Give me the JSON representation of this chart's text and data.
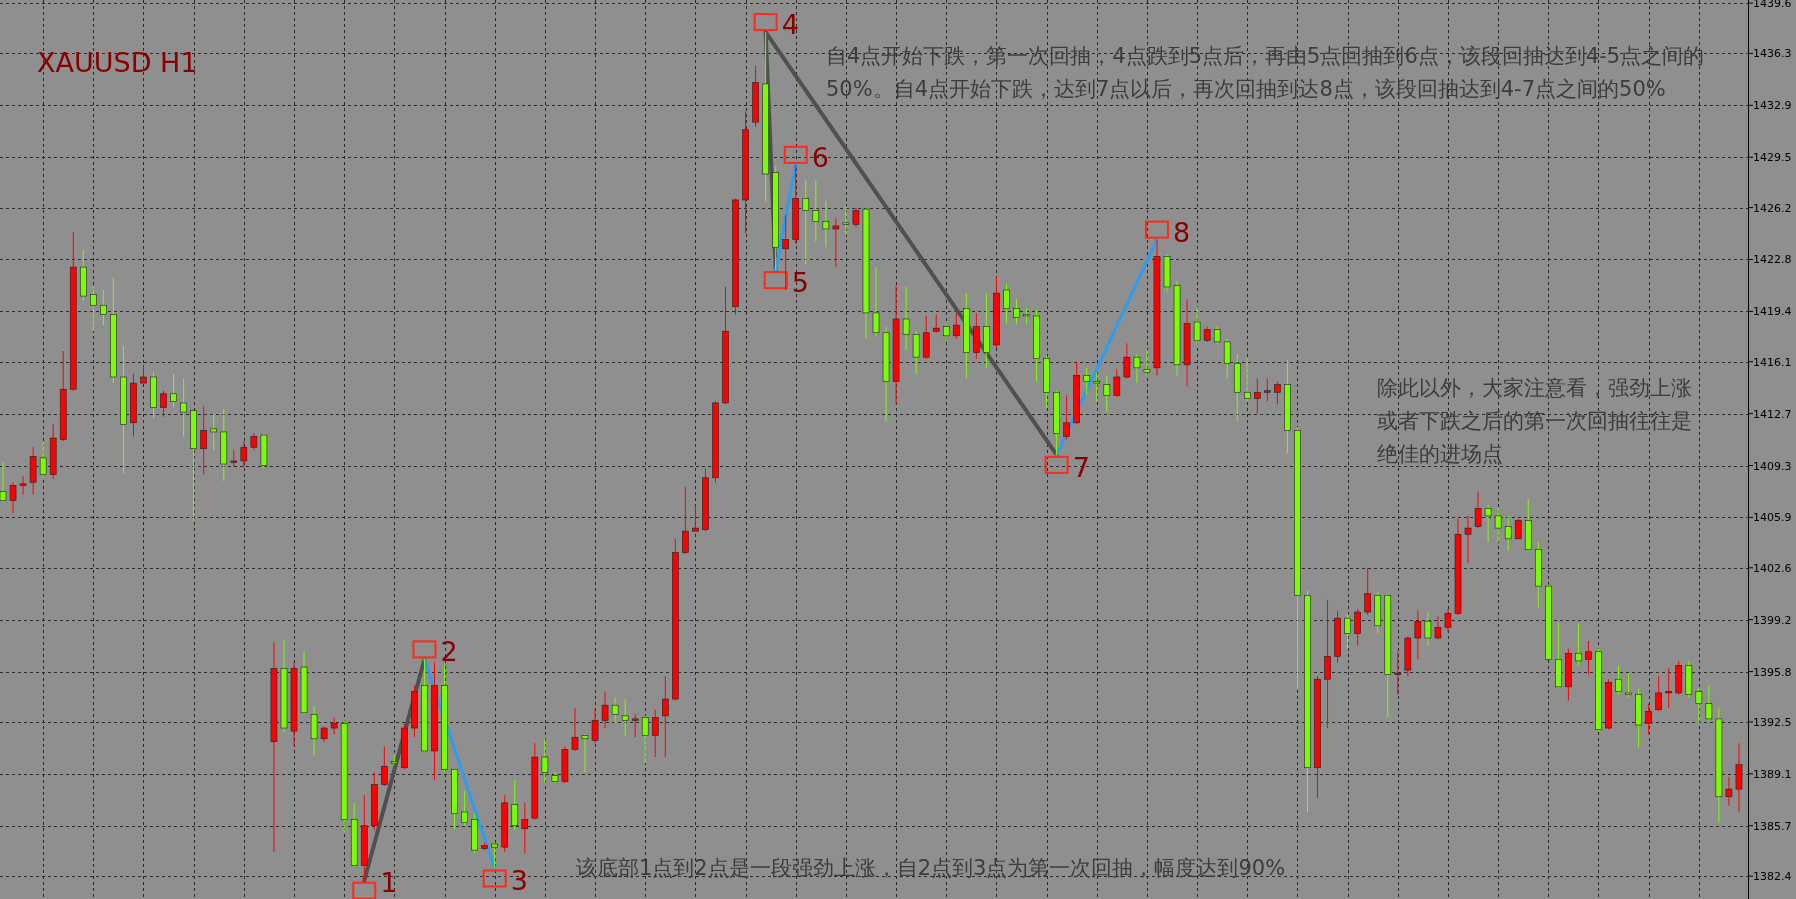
{
  "chart_data": {
    "type": "candlestick",
    "title": "XAUUSD H1",
    "categories": [
      null,
      null,
      null,
      null,
      null,
      null,
      null,
      null,
      null,
      null,
      null,
      null,
      null,
      null,
      null,
      null,
      null,
      null,
      null,
      null,
      null,
      null,
      null,
      null,
      null,
      null,
      null,
      null,
      null,
      null,
      null,
      null,
      null,
      null,
      null,
      null,
      null,
      null,
      null,
      null,
      null,
      null,
      null,
      null,
      null,
      null,
      null,
      null,
      null,
      null,
      null,
      null,
      null,
      null,
      null,
      null,
      null,
      null,
      null,
      null,
      null,
      null,
      null,
      null,
      null,
      null,
      null,
      null,
      null,
      null,
      null,
      null,
      null,
      null,
      null,
      null,
      null,
      null,
      null,
      null,
      null,
      null,
      null,
      null,
      null,
      null,
      null,
      null,
      null,
      null,
      null,
      null,
      null,
      null,
      null,
      null,
      null,
      null,
      null,
      null,
      null,
      null,
      null,
      null,
      null,
      null,
      null,
      null,
      null,
      null,
      null,
      null,
      null,
      null,
      null,
      null,
      null,
      null,
      null,
      null,
      null,
      null,
      null,
      null,
      null,
      null,
      null,
      null,
      null,
      null,
      null,
      null,
      null,
      null,
      null,
      null,
      null,
      null,
      null,
      null,
      null,
      null,
      null,
      null,
      null,
      null,
      null,
      null,
      null,
      null,
      null,
      null,
      null,
      null,
      null,
      null,
      null,
      null,
      null,
      null,
      null,
      null,
      null,
      null,
      null,
      null,
      null,
      null,
      null,
      null,
      null,
      null,
      null,
      null
    ],
    "ohlc": [
      [
        1407.6,
        1409.5,
        1406.9,
        1407.0
      ],
      [
        1407.0,
        1408.2,
        1406.2,
        1408.0
      ],
      [
        1408.0,
        1408.6,
        1407.4,
        1408.1
      ],
      [
        1408.2,
        1410.5,
        1407.4,
        1409.9
      ],
      [
        1409.8,
        1410.8,
        1408.5,
        1408.7
      ],
      [
        1408.7,
        1412.0,
        1408.4,
        1411.1
      ],
      [
        1411.0,
        1416.8,
        1410.9,
        1414.3
      ],
      [
        1414.3,
        1424.6,
        1414.2,
        1422.3
      ],
      [
        1422.3,
        1423.4,
        1420.1,
        1420.4
      ],
      [
        1420.5,
        1421.0,
        1418.1,
        1419.8
      ],
      [
        1419.8,
        1420.8,
        1418.5,
        1419.2
      ],
      [
        1419.2,
        1421.6,
        1414.7,
        1415.1
      ],
      [
        1415.1,
        1417.1,
        1408.8,
        1412.0
      ],
      [
        1412.1,
        1415.3,
        1411.2,
        1414.7
      ],
      [
        1414.7,
        1415.9,
        1414.7,
        1415.1
      ],
      [
        1415.1,
        1415.4,
        1412.4,
        1413.1
      ],
      [
        1413.1,
        1414.2,
        1412.5,
        1414.0
      ],
      [
        1414.0,
        1415.3,
        1413.1,
        1413.5
      ],
      [
        1413.4,
        1415.0,
        1411.2,
        1412.8
      ],
      [
        1412.9,
        1412.9,
        1405.7,
        1410.4
      ],
      [
        1410.4,
        1413.2,
        1408.7,
        1411.6
      ],
      [
        1411.7,
        1412.7,
        1410.3,
        1411.5
      ],
      [
        1411.5,
        1413.0,
        1408.3,
        1409.4
      ],
      [
        1409.5,
        1410.3,
        1409.2,
        1409.6
      ],
      [
        1409.6,
        1410.9,
        1409.2,
        1410.5
      ],
      [
        1410.5,
        1411.4,
        1410.3,
        1411.2
      ],
      [
        1411.3,
        1411.4,
        1409.1,
        1409.3
      ],
      [
        1391.2,
        1397.7,
        1384.0,
        1396.0
      ],
      [
        1396.0,
        1397.9,
        1391.8,
        1392.1
      ],
      [
        1391.9,
        1396.4,
        1390.9,
        1396.0
      ],
      [
        1396.1,
        1397.1,
        1393.0,
        1393.1
      ],
      [
        1393.0,
        1393.5,
        1390.3,
        1391.4
      ],
      [
        1391.4,
        1392.2,
        1391.2,
        1392.1
      ],
      [
        1392.1,
        1392.8,
        1391.7,
        1392.4
      ],
      [
        1392.4,
        1392.6,
        1385.3,
        1386.1
      ],
      [
        1386.1,
        1387.2,
        1383.0,
        1383.1
      ],
      [
        1383.1,
        1387.7,
        1382.1,
        1385.7
      ],
      [
        1385.7,
        1389.2,
        1385.4,
        1388.4
      ],
      [
        1388.4,
        1390.9,
        1388.3,
        1389.6
      ],
      [
        1389.9,
        1390.3,
        1389.7,
        1389.8
      ],
      [
        1389.5,
        1392.4,
        1389.4,
        1392.1
      ],
      [
        1392.1,
        1394.9,
        1391.5,
        1394.5
      ],
      [
        1394.9,
        1396.6,
        1390.5,
        1390.6
      ],
      [
        1390.6,
        1396.4,
        1388.7,
        1394.9
      ],
      [
        1394.9,
        1396.2,
        1389.2,
        1389.4
      ],
      [
        1389.4,
        1389.4,
        1385.5,
        1386.5
      ],
      [
        1386.6,
        1388.0,
        1385.7,
        1385.9
      ],
      [
        1386.1,
        1386.5,
        1383.9,
        1384.1
      ],
      [
        1384.2,
        1384.6,
        1384.1,
        1384.4
      ],
      [
        1384.5,
        1384.6,
        1382.9,
        1384.3
      ],
      [
        1384.3,
        1387.7,
        1384.0,
        1387.2
      ],
      [
        1387.1,
        1388.7,
        1385.4,
        1385.7
      ],
      [
        1385.5,
        1387.2,
        1383.9,
        1386.1
      ],
      [
        1386.2,
        1391.1,
        1386.1,
        1390.2
      ],
      [
        1390.2,
        1391.4,
        1388.5,
        1389.2
      ],
      [
        1389.0,
        1389.2,
        1388.5,
        1388.6
      ],
      [
        1388.6,
        1390.9,
        1388.5,
        1390.7
      ],
      [
        1390.7,
        1393.4,
        1390.6,
        1391.5
      ],
      [
        1391.6,
        1391.7,
        1389.2,
        1391.4
      ],
      [
        1391.3,
        1393.4,
        1391.1,
        1392.6
      ],
      [
        1392.6,
        1394.5,
        1392.1,
        1393.6
      ],
      [
        1393.6,
        1394.1,
        1392.4,
        1393.0
      ],
      [
        1392.9,
        1394.0,
        1391.6,
        1392.6
      ],
      [
        1392.6,
        1393.0,
        1391.5,
        1392.7
      ],
      [
        1392.8,
        1392.9,
        1389.8,
        1391.6
      ],
      [
        1391.6,
        1393.3,
        1390.2,
        1392.8
      ],
      [
        1392.9,
        1395.5,
        1390.2,
        1394.0
      ],
      [
        1394.0,
        1404.5,
        1393.9,
        1403.6
      ],
      [
        1403.6,
        1407.9,
        1403.5,
        1405.0
      ],
      [
        1405.0,
        1406.7,
        1405.0,
        1405.2
      ],
      [
        1405.1,
        1409.1,
        1405.0,
        1408.5
      ],
      [
        1408.5,
        1413.5,
        1408.2,
        1413.4
      ],
      [
        1413.4,
        1421.0,
        1413.3,
        1418.1
      ],
      [
        1419.7,
        1426.8,
        1419.2,
        1426.7
      ],
      [
        1426.7,
        1432.5,
        1424.5,
        1431.3
      ],
      [
        1431.8,
        1435.5,
        1431.5,
        1434.4
      ],
      [
        1434.3,
        1437.7,
        1426.6,
        1428.4
      ],
      [
        1428.5,
        1428.9,
        1422.1,
        1423.6
      ],
      [
        1423.5,
        1425.7,
        1420.8,
        1424.1
      ],
      [
        1424.1,
        1429.0,
        1423.8,
        1426.8
      ],
      [
        1426.8,
        1428.0,
        1422.5,
        1426.0
      ],
      [
        1426.0,
        1428.0,
        1424.0,
        1425.3
      ],
      [
        1425.3,
        1426.6,
        1423.6,
        1424.8
      ],
      [
        1424.8,
        1425.5,
        1422.3,
        1425.0
      ],
      [
        1425.2,
        1426.3,
        1424.4,
        1425.1
      ],
      [
        1425.1,
        1426.2,
        1424.9,
        1426.0
      ],
      [
        1426.1,
        1426.2,
        1417.6,
        1419.3
      ],
      [
        1419.3,
        1422.3,
        1417.8,
        1418.0
      ],
      [
        1418.0,
        1418.4,
        1412.2,
        1414.8
      ],
      [
        1414.8,
        1421.1,
        1413.3,
        1418.9
      ],
      [
        1418.9,
        1421.0,
        1416.9,
        1417.9
      ],
      [
        1417.9,
        1418.1,
        1415.3,
        1416.4
      ],
      [
        1416.4,
        1419.1,
        1416.3,
        1418.0
      ],
      [
        1418.1,
        1419.2,
        1418.0,
        1418.3
      ],
      [
        1418.4,
        1418.6,
        1417.6,
        1417.8
      ],
      [
        1417.8,
        1419.3,
        1417.6,
        1418.5
      ],
      [
        1419.6,
        1420.6,
        1415.0,
        1416.7
      ],
      [
        1416.7,
        1419.3,
        1416.3,
        1418.4
      ],
      [
        1418.4,
        1420.6,
        1415.7,
        1416.7
      ],
      [
        1417.2,
        1421.7,
        1417.0,
        1420.6
      ],
      [
        1420.8,
        1421.2,
        1418.6,
        1419.6
      ],
      [
        1419.6,
        1420.2,
        1418.6,
        1419.0
      ],
      [
        1419.2,
        1419.6,
        1418.6,
        1419.1
      ],
      [
        1419.1,
        1419.5,
        1414.8,
        1416.3
      ],
      [
        1416.3,
        1416.5,
        1413.1,
        1414.1
      ],
      [
        1414.1,
        1414.2,
        1410.0,
        1411.4
      ],
      [
        1411.2,
        1413.9,
        1411.0,
        1412.1
      ],
      [
        1412.1,
        1416.1,
        1412.0,
        1415.2
      ],
      [
        1415.2,
        1415.7,
        1413.9,
        1414.8
      ],
      [
        1414.8,
        1415.4,
        1413.5,
        1414.7
      ],
      [
        1414.6,
        1415.2,
        1412.8,
        1413.9
      ],
      [
        1413.9,
        1415.6,
        1413.8,
        1415.1
      ],
      [
        1415.1,
        1417.3,
        1415.0,
        1416.4
      ],
      [
        1416.4,
        1416.6,
        1414.7,
        1415.7
      ],
      [
        1415.6,
        1416.9,
        1415.2,
        1415.4
      ],
      [
        1415.7,
        1424.1,
        1415.2,
        1423.0
      ],
      [
        1423.0,
        1423.1,
        1420.7,
        1421.0
      ],
      [
        1421.1,
        1421.4,
        1415.2,
        1415.9
      ],
      [
        1415.9,
        1420.2,
        1414.5,
        1418.6
      ],
      [
        1418.7,
        1419.7,
        1417.2,
        1417.5
      ],
      [
        1417.5,
        1418.4,
        1417.4,
        1418.2
      ],
      [
        1418.2,
        1418.4,
        1417.3,
        1417.4
      ],
      [
        1417.4,
        1417.6,
        1415.0,
        1416.0
      ],
      [
        1416.0,
        1416.6,
        1412.2,
        1414.1
      ],
      [
        1414.1,
        1416.3,
        1413.5,
        1413.7
      ],
      [
        1413.7,
        1415.0,
        1412.7,
        1414.1
      ],
      [
        1414.1,
        1415.0,
        1413.5,
        1414.2
      ],
      [
        1414.1,
        1414.8,
        1413.3,
        1414.6
      ],
      [
        1414.6,
        1416.2,
        1410.1,
        1411.6
      ],
      [
        1411.6,
        1411.8,
        1394.7,
        1400.8
      ],
      [
        1400.8,
        1401.1,
        1386.6,
        1389.5
      ],
      [
        1389.5,
        1395.5,
        1387.5,
        1395.3
      ],
      [
        1395.3,
        1400.5,
        1392.1,
        1396.8
      ],
      [
        1396.8,
        1399.8,
        1396.4,
        1399.3
      ],
      [
        1399.3,
        1399.6,
        1397.3,
        1398.3
      ],
      [
        1398.3,
        1399.9,
        1397.5,
        1399.7
      ],
      [
        1399.7,
        1402.6,
        1399.5,
        1400.9
      ],
      [
        1400.8,
        1401.0,
        1398.3,
        1398.8
      ],
      [
        1400.8,
        1400.9,
        1392.8,
        1395.6
      ],
      [
        1395.6,
        1397.1,
        1394.3,
        1395.7
      ],
      [
        1395.9,
        1398.1,
        1395.5,
        1398.0
      ],
      [
        1398.0,
        1399.8,
        1396.6,
        1399.1
      ],
      [
        1399.1,
        1399.7,
        1397.5,
        1398.0
      ],
      [
        1398.0,
        1399.4,
        1397.9,
        1398.7
      ],
      [
        1398.7,
        1399.9,
        1398.4,
        1399.6
      ],
      [
        1399.6,
        1405.8,
        1399.5,
        1404.8
      ],
      [
        1404.8,
        1406.0,
        1402.9,
        1405.2
      ],
      [
        1405.3,
        1407.6,
        1405.2,
        1406.5
      ],
      [
        1406.5,
        1406.7,
        1404.3,
        1406.0
      ],
      [
        1406.0,
        1406.5,
        1404.3,
        1405.2
      ],
      [
        1405.3,
        1406.0,
        1403.7,
        1404.5
      ],
      [
        1404.5,
        1405.8,
        1404.5,
        1405.7
      ],
      [
        1405.7,
        1407.1,
        1403.7,
        1403.8
      ],
      [
        1403.8,
        1404.3,
        1400.0,
        1401.4
      ],
      [
        1401.4,
        1401.5,
        1396.6,
        1396.6
      ],
      [
        1396.6,
        1399.0,
        1394.7,
        1394.8
      ],
      [
        1394.8,
        1397.3,
        1393.9,
        1397.0
      ],
      [
        1397.0,
        1398.9,
        1396.2,
        1396.5
      ],
      [
        1396.6,
        1397.8,
        1395.6,
        1397.1
      ],
      [
        1397.1,
        1397.3,
        1391.9,
        1392.0
      ],
      [
        1392.1,
        1395.3,
        1392.0,
        1395.1
      ],
      [
        1395.3,
        1396.2,
        1394.3,
        1394.5
      ],
      [
        1394.4,
        1395.7,
        1394.1,
        1394.3
      ],
      [
        1394.3,
        1394.7,
        1390.8,
        1392.3
      ],
      [
        1392.4,
        1393.7,
        1391.7,
        1393.2
      ],
      [
        1393.3,
        1395.5,
        1393.2,
        1394.4
      ],
      [
        1394.4,
        1396.0,
        1393.4,
        1394.5
      ],
      [
        1394.4,
        1396.5,
        1394.3,
        1396.2
      ],
      [
        1396.2,
        1396.5,
        1394.1,
        1394.3
      ],
      [
        1394.5,
        1394.7,
        1392.4,
        1393.7
      ],
      [
        1393.7,
        1394.9,
        1392.6,
        1392.7
      ],
      [
        1392.7,
        1393.4,
        1385.9,
        1387.6
      ],
      [
        1387.6,
        1388.9,
        1387.0,
        1388.1
      ],
      [
        1388.1,
        1391.1,
        1386.6,
        1389.7
      ]
    ],
    "colors": [
      "#7cfc00",
      "#ff0000",
      "#ff0000",
      "#ff0000",
      "#7cfc00",
      "#ff0000",
      "#ff0000",
      "#ff0000",
      "#7cfc00",
      "#7cfc00",
      "#7cfc00",
      "#7cfc00",
      "#7cfc00",
      "#ff0000",
      "#ff0000",
      "#7cfc00",
      "#ff0000",
      "#7cfc00",
      "#7cfc00",
      "#7cfc00",
      "#ff0000",
      "#7cfc00",
      "#7cfc00",
      "#ff0000",
      "#ff0000",
      "#ff0000",
      "#7cfc00",
      "#ff0000",
      "#7cfc00",
      "#ff0000",
      "#7cfc00",
      "#7cfc00",
      "#ff0000",
      "#ff0000",
      "#7cfc00",
      "#7cfc00",
      "#ff0000",
      "#ff0000",
      "#ff0000",
      "#7cfc00",
      "#ff0000",
      "#ff0000",
      "#7cfc00",
      "#ff0000",
      "#7cfc00",
      "#7cfc00",
      "#7cfc00",
      "#7cfc00",
      "#ff0000",
      "#7cfc00",
      "#ff0000",
      "#7cfc00",
      "#ff0000",
      "#ff0000",
      "#7cfc00",
      "#7cfc00",
      "#ff0000",
      "#ff0000",
      "#7cfc00",
      "#ff0000",
      "#ff0000",
      "#7cfc00",
      "#7cfc00",
      "#ff0000",
      "#7cfc00",
      "#ff0000",
      "#ff0000",
      "#ff0000",
      "#ff0000",
      "#ff0000",
      "#ff0000",
      "#ff0000",
      "#ff0000",
      "#ff0000",
      "#ff0000",
      "#ff0000",
      "#7cfc00",
      "#7cfc00",
      "#ff0000",
      "#ff0000",
      "#7cfc00",
      "#7cfc00",
      "#7cfc00",
      "#ff0000",
      "#7cfc00",
      "#ff0000",
      "#7cfc00",
      "#7cfc00",
      "#7cfc00",
      "#ff0000",
      "#7cfc00",
      "#7cfc00",
      "#ff0000",
      "#ff0000",
      "#7cfc00",
      "#ff0000",
      "#7cfc00",
      "#ff0000",
      "#7cfc00",
      "#ff0000",
      "#7cfc00",
      "#7cfc00",
      "#7cfc00",
      "#7cfc00",
      "#7cfc00",
      "#7cfc00",
      "#ff0000",
      "#ff0000",
      "#7cfc00",
      "#7cfc00",
      "#7cfc00",
      "#ff0000",
      "#ff0000",
      "#7cfc00",
      "#7cfc00",
      "#ff0000",
      "#7cfc00",
      "#7cfc00",
      "#ff0000",
      "#7cfc00",
      "#ff0000",
      "#7cfc00",
      "#7cfc00",
      "#7cfc00",
      "#7cfc00",
      "#ff0000",
      "#ff0000",
      "#ff0000",
      "#7cfc00",
      "#7cfc00",
      "#7cfc00",
      "#ff0000",
      "#ff0000",
      "#ff0000",
      "#7cfc00",
      "#ff0000",
      "#ff0000",
      "#7cfc00",
      "#7cfc00",
      "#ff0000",
      "#ff0000",
      "#ff0000",
      "#7cfc00",
      "#ff0000",
      "#ff0000",
      "#ff0000",
      "#ff0000",
      "#ff0000",
      "#7cfc00",
      "#7cfc00",
      "#7cfc00",
      "#ff0000",
      "#7cfc00",
      "#7cfc00",
      "#7cfc00",
      "#7cfc00",
      "#ff0000",
      "#7cfc00",
      "#ff0000",
      "#7cfc00",
      "#ff0000",
      "#7cfc00",
      "#7cfc00",
      "#7cfc00",
      "#ff0000",
      "#ff0000",
      "#ff0000",
      "#ff0000",
      "#7cfc00",
      "#7cfc00",
      "#7cfc00",
      "#7cfc00",
      "#ff0000",
      "#ff0000"
    ],
    "ylim": [
      1380.9,
      1439.8
    ],
    "yticks": [
      1382.4,
      1385.7,
      1389.1,
      1392.5,
      1395.8,
      1399.2,
      1402.6,
      1405.9,
      1409.3,
      1412.7,
      1416.1,
      1419.4,
      1422.8,
      1426.2,
      1429.5,
      1432.9,
      1436.3,
      1439.6
    ],
    "grid": true,
    "tick_labels": "y",
    "annotations": [
      "自4点开始下跌，第一次回抽，4点跌到5点后，再由5点回抽到6点，该段回抽达到4-5点之间的50%。自4点开始下跌，达到7点以后，再次回抽到达8点，该段回抽达到4-7点之间的50%",
      "除此以外，大家注意看，强劲上涨或者下跌之后的第一次回抽往往是绝佳的进场点",
      "该底部1点到2点是一段强劲上涨，自2点到3点为第一次回抽，幅度达到90%",
      "1",
      "2",
      "3",
      "4",
      "5",
      "6",
      "7",
      "8"
    ]
  }
}
